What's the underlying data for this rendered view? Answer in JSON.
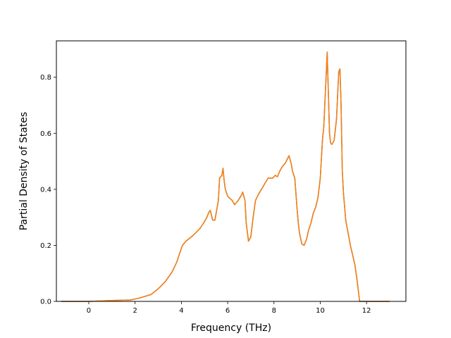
{
  "chart_data": {
    "type": "line",
    "title": "",
    "xlabel": "Frequency (THz)",
    "ylabel": "Partial Density of States",
    "xlim": [
      -1.4,
      13.7
    ],
    "ylim": [
      0.0,
      0.93
    ],
    "x_ticks": [
      0,
      2,
      4,
      6,
      8,
      10,
      12
    ],
    "x_tick_labels": [
      "0",
      "2",
      "4",
      "6",
      "8",
      "10",
      "12"
    ],
    "y_ticks": [
      0.0,
      0.2,
      0.4,
      0.6,
      0.8
    ],
    "y_tick_labels": [
      "0.0",
      "0.2",
      "0.4",
      "0.6",
      "0.8"
    ],
    "grid": false,
    "legend": "none",
    "colors": {
      "series_top": "#ff7f0e",
      "series_under": "#1f77b4"
    },
    "series": [
      {
        "x": [
          -1.2,
          0,
          1,
          1.8,
          2.2,
          2.7,
          3.0,
          3.3,
          3.6,
          3.8,
          4.0,
          4.05,
          4.2,
          4.5,
          4.8,
          5.0,
          5.1,
          5.2,
          5.25,
          5.35,
          5.45,
          5.6,
          5.65,
          5.75,
          5.8,
          5.85,
          5.9,
          6.0,
          6.2,
          6.3,
          6.45,
          6.6,
          6.65,
          6.75,
          6.8,
          6.9,
          7.0,
          7.1,
          7.2,
          7.35,
          7.5,
          7.6,
          7.75,
          7.85,
          7.95,
          8.05,
          8.15,
          8.25,
          8.35,
          8.5,
          8.65,
          8.75,
          8.8,
          8.9,
          9.0,
          9.05,
          9.1,
          9.2,
          9.3,
          9.4,
          9.5,
          9.6,
          9.7,
          9.8,
          9.9,
          10.0,
          10.1,
          10.15,
          10.25,
          10.3,
          10.4,
          10.45,
          10.5,
          10.6,
          10.7,
          10.8,
          10.85,
          10.9,
          10.95,
          11.0,
          11.1,
          11.3,
          11.5,
          11.6,
          11.7,
          11.8,
          11.85,
          12.0,
          13.0
        ],
        "y": [
          0.0,
          0.0,
          0.003,
          0.005,
          0.012,
          0.025,
          0.045,
          0.07,
          0.105,
          0.14,
          0.19,
          0.2,
          0.215,
          0.235,
          0.26,
          0.285,
          0.3,
          0.32,
          0.325,
          0.29,
          0.29,
          0.36,
          0.44,
          0.45,
          0.475,
          0.43,
          0.4,
          0.375,
          0.36,
          0.345,
          0.36,
          0.38,
          0.39,
          0.36,
          0.28,
          0.215,
          0.23,
          0.3,
          0.36,
          0.385,
          0.405,
          0.42,
          0.44,
          0.44,
          0.44,
          0.45,
          0.445,
          0.465,
          0.48,
          0.495,
          0.52,
          0.49,
          0.465,
          0.44,
          0.33,
          0.28,
          0.245,
          0.205,
          0.2,
          0.22,
          0.255,
          0.28,
          0.315,
          0.335,
          0.37,
          0.44,
          0.58,
          0.62,
          0.8,
          0.89,
          0.6,
          0.565,
          0.56,
          0.575,
          0.65,
          0.82,
          0.83,
          0.7,
          0.47,
          0.39,
          0.29,
          0.2,
          0.13,
          0.07,
          0.0,
          0.0,
          0.0,
          0.0,
          0.0
        ]
      }
    ]
  }
}
